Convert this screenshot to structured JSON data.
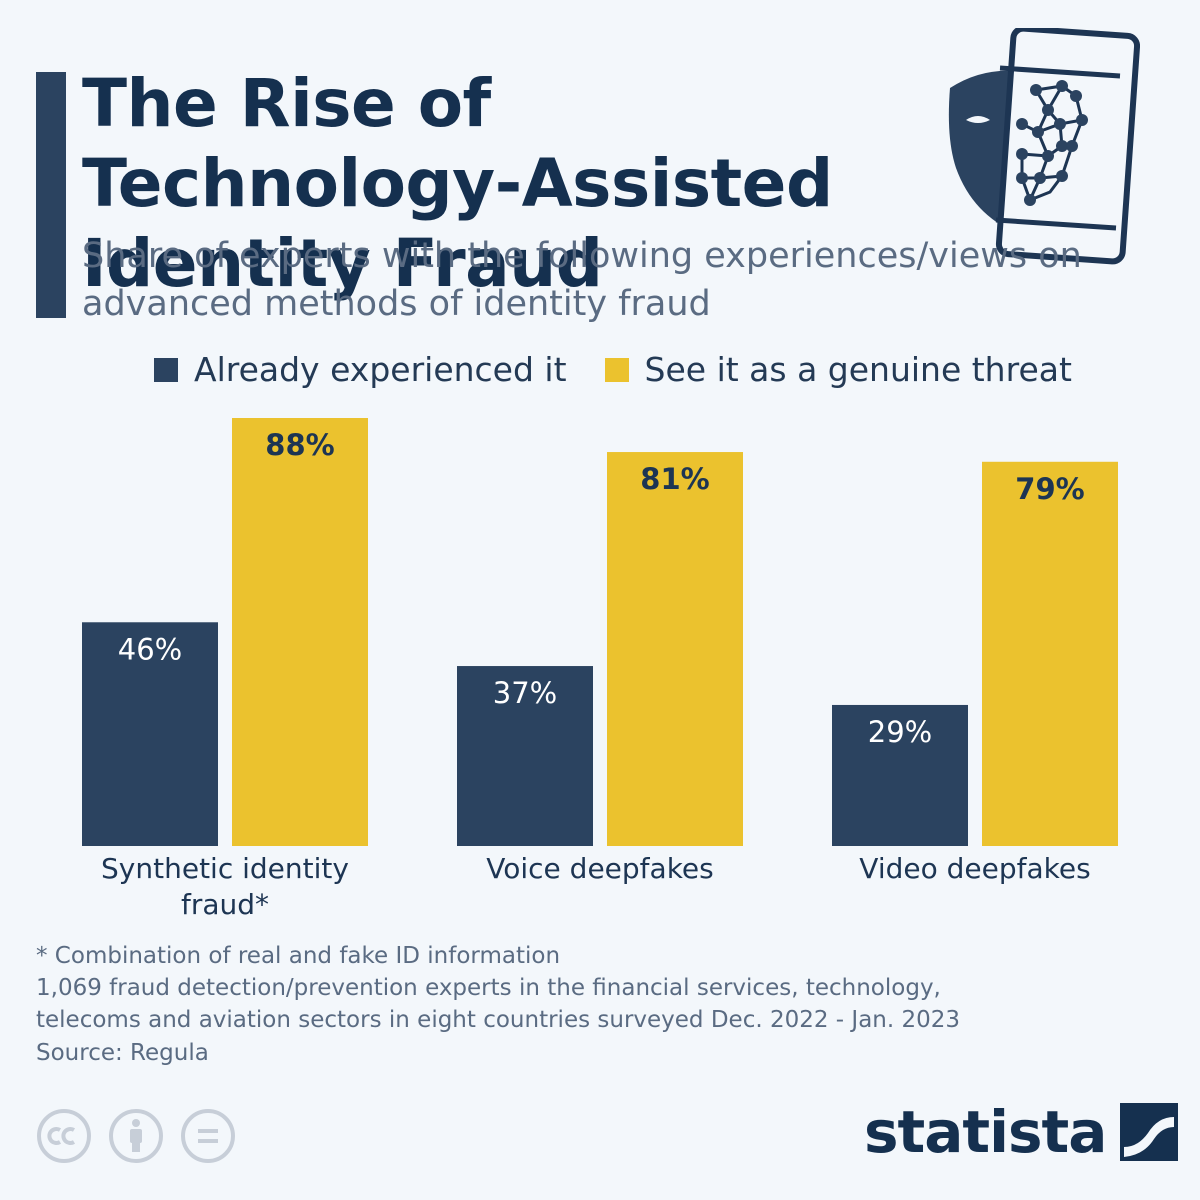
{
  "header": {
    "title": "The Rise of Technology-Assisted Identity Fraud",
    "subtitle": "Share of experts with the following experiences/views on advanced methods of identity fraud"
  },
  "colors": {
    "experienced": "#2b4360",
    "threat": "#ebc22e",
    "background": "#f3f7fb"
  },
  "chart_data": {
    "type": "bar",
    "title": "The Rise of Technology-Assisted Identity Fraud",
    "subtitle": "Share of experts with the following experiences/views on advanced methods of identity fraud",
    "categories": [
      "Synthetic identity fraud*",
      "Voice deepfakes",
      "Video deepfakes"
    ],
    "category_lines": [
      [
        "Synthetic identity",
        "fraud*"
      ],
      [
        "Voice deepfakes"
      ],
      [
        "Video deepfakes"
      ]
    ],
    "series": [
      {
        "name": "Already experienced it",
        "values": [
          46,
          37,
          29
        ],
        "labels": [
          "46%",
          "37%",
          "29%"
        ]
      },
      {
        "name": "See it as a genuine threat",
        "values": [
          88,
          81,
          79
        ],
        "labels": [
          "88%",
          "81%",
          "79%"
        ]
      }
    ],
    "ylim": [
      0,
      88
    ],
    "legend": "top",
    "grid": false,
    "xlabel": "",
    "ylabel": ""
  },
  "notes": {
    "footnote": "* Combination of real and fake ID information",
    "methodology_line1": "1,069 fraud detection/prevention experts in the financial services, technology,",
    "methodology_line2": "telecoms and aviation sectors in eight countries surveyed Dec. 2022 - Jan. 2023",
    "source": "Source: Regula"
  },
  "brand": {
    "name": "statista"
  },
  "icons": {
    "hero": "mask-phone-face-scan-icon",
    "license": [
      "cc-icon",
      "attribution-icon",
      "no-derivatives-icon"
    ]
  }
}
